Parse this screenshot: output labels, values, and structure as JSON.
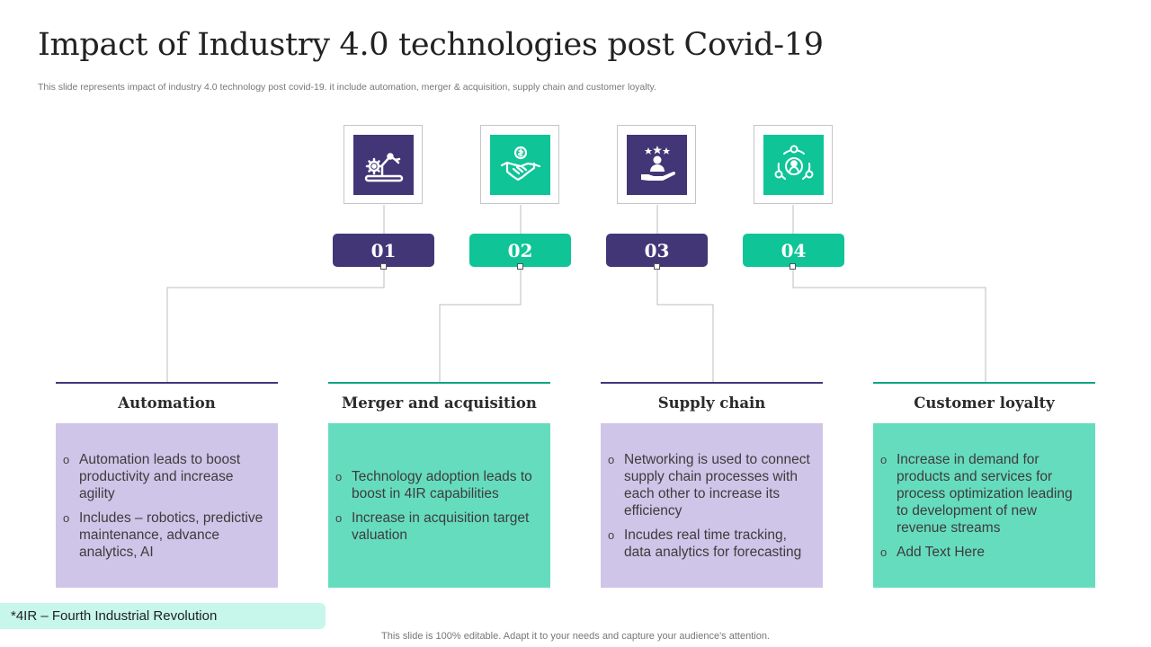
{
  "title": "Impact of Industry 4.0 technologies post Covid-19",
  "subtitle": "This slide represents impact of industry 4.0 technology post covid-19. it include automation, merger & acquisition, supply chain and customer loyalty.",
  "colors": {
    "purple": "#433677",
    "green": "#0fc497",
    "card_purple": "#cfc5e8",
    "card_green": "#66dcbf"
  },
  "steps": [
    {
      "number": "01",
      "icon": "robotic-arm-icon",
      "heading": "Automation",
      "items": [
        "Automation leads to boost productivity and increase agility",
        "Includes – robotics, predictive maintenance, advance analytics, AI"
      ]
    },
    {
      "number": "02",
      "icon": "handshake-dollar-icon",
      "heading": "Merger and acquisition",
      "items": [
        "Technology adoption leads to boost in 4IR capabilities",
        "Increase in acquisition target valuation"
      ]
    },
    {
      "number": "03",
      "icon": "customer-rating-hand-icon",
      "heading": "Supply chain",
      "items": [
        "Networking is used to connect supply chain processes with each other to increase its efficiency",
        "Incudes real time tracking, data analytics for forecasting"
      ]
    },
    {
      "number": "04",
      "icon": "customer-cycle-icon",
      "heading": "Customer loyalty",
      "items": [
        "Increase in demand for products and services for process optimization leading to development of new revenue streams",
        "Add Text Here"
      ]
    }
  ],
  "bullet_symbol": "o",
  "footnote": "*4IR – Fourth Industrial  Revolution",
  "footer": "This slide is 100% editable. Adapt it to your needs and capture your audience's attention."
}
